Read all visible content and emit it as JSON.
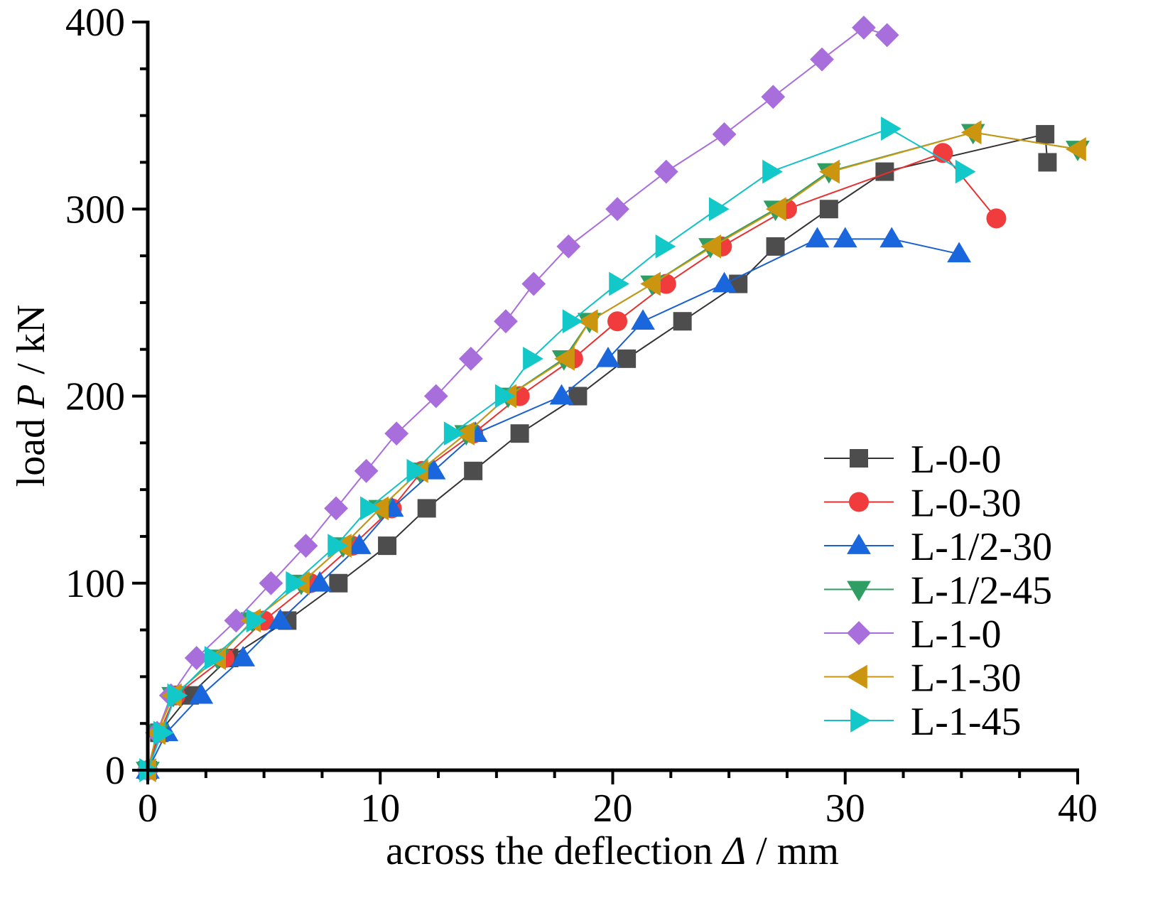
{
  "chart_data": {
    "type": "line",
    "title": "",
    "xlabel": "across the deflection Δ / mm",
    "xlabel_parts": [
      "across the deflection ",
      "Δ",
      " / mm"
    ],
    "ylabel": "load P / kN",
    "ylabel_parts": [
      "load ",
      "P",
      " / kN"
    ],
    "xlim": [
      0,
      40
    ],
    "ylim": [
      0,
      400
    ],
    "xticks": [
      0,
      10,
      20,
      30,
      40
    ],
    "xtick_labels": [
      "0",
      "10",
      "20",
      "30",
      "40"
    ],
    "xminor_step": 2.5,
    "yticks": [
      0,
      100,
      200,
      300,
      400
    ],
    "ytick_labels": [
      "0",
      "100",
      "200",
      "300",
      "400"
    ],
    "yminor_step": 25,
    "grid": false,
    "legend_position": "bottom-right",
    "series": [
      {
        "name": "L-0-0",
        "marker": "square",
        "color": "#4d4d4d",
        "line_color": "#333333",
        "x": [
          0,
          0.5,
          1.8,
          3.5,
          6.0,
          8.2,
          10.3,
          12.0,
          14.0,
          16.0,
          18.5,
          20.6,
          23.0,
          25.4,
          27.0,
          29.3,
          31.7,
          38.6,
          38.7
        ],
        "y": [
          0,
          20,
          40,
          60,
          80,
          100,
          120,
          140,
          160,
          180,
          200,
          220,
          240,
          260,
          280,
          300,
          320,
          340,
          325
        ]
      },
      {
        "name": "L-0-30",
        "marker": "circle",
        "color": "#f03c3c",
        "line_color": "#e83030",
        "x": [
          0,
          0.5,
          1.2,
          3.3,
          5.0,
          7.0,
          8.8,
          10.5,
          11.8,
          14.0,
          16.0,
          18.3,
          20.2,
          22.3,
          24.7,
          27.5,
          34.2,
          36.5
        ],
        "y": [
          0,
          20,
          40,
          60,
          80,
          100,
          120,
          140,
          160,
          180,
          200,
          220,
          240,
          260,
          280,
          300,
          330,
          295
        ]
      },
      {
        "name": "L-1/2-30",
        "marker": "triangle-up",
        "color": "#1a66dd",
        "line_color": "#1a5fd0",
        "x": [
          0,
          0.8,
          2.3,
          4.1,
          5.7,
          7.4,
          9.1,
          10.5,
          12.3,
          14.1,
          17.8,
          19.8,
          21.3,
          24.8,
          28.8,
          30.0,
          32.0,
          34.9
        ],
        "y": [
          0,
          20,
          40,
          60,
          80,
          100,
          120,
          140,
          160,
          180,
          200,
          220,
          240,
          260,
          284,
          284,
          284,
          276
        ]
      },
      {
        "name": "L-1/2-45",
        "marker": "triangle-down",
        "color": "#2e9e62",
        "line_color": "#2e9e62",
        "x": [
          0,
          0.4,
          1.1,
          3.0,
          4.5,
          6.6,
          8.4,
          10.0,
          11.7,
          13.7,
          15.5,
          17.9,
          19.0,
          21.7,
          24.2,
          27.0,
          29.3,
          35.5,
          40.0
        ],
        "y": [
          0,
          20,
          40,
          60,
          80,
          100,
          120,
          140,
          160,
          180,
          200,
          220,
          240,
          260,
          280,
          300,
          320,
          341,
          332
        ]
      },
      {
        "name": "L-1-0",
        "marker": "diamond",
        "color": "#a86edc",
        "line_color": "#a86edc",
        "x": [
          0,
          0.4,
          1.0,
          2.1,
          3.8,
          5.3,
          6.8,
          8.1,
          9.4,
          10.7,
          12.4,
          13.9,
          15.4,
          16.6,
          18.1,
          20.2,
          22.3,
          24.8,
          26.9,
          29.0,
          30.8,
          31.8
        ],
        "y": [
          0,
          20,
          40,
          60,
          80,
          100,
          120,
          140,
          160,
          180,
          200,
          220,
          240,
          260,
          280,
          300,
          320,
          340,
          360,
          380,
          397,
          393
        ]
      },
      {
        "name": "L-1-30",
        "marker": "triangle-left",
        "color": "#cc9510",
        "line_color": "#cc9510",
        "x": [
          0,
          0.4,
          1.1,
          3.0,
          4.5,
          6.6,
          8.4,
          10.0,
          11.7,
          13.7,
          15.5,
          18.0,
          19.0,
          21.7,
          24.3,
          27.1,
          29.4,
          35.5,
          40.0
        ],
        "y": [
          0,
          20,
          40,
          60,
          80,
          100,
          120,
          140,
          160,
          180,
          200,
          220,
          240,
          260,
          280,
          300,
          320,
          341,
          332
        ]
      },
      {
        "name": "L-1-45",
        "marker": "triangle-right",
        "color": "#12c8c8",
        "line_color": "#12c0c8",
        "x": [
          0,
          0.6,
          1.2,
          2.8,
          4.6,
          6.3,
          8.1,
          9.5,
          11.5,
          13.1,
          15.3,
          16.5,
          18.2,
          20.2,
          22.2,
          24.5,
          26.8,
          31.9,
          35.1
        ],
        "y": [
          0,
          20,
          40,
          60,
          80,
          100,
          120,
          140,
          160,
          180,
          200,
          220,
          240,
          260,
          280,
          300,
          320,
          343,
          320
        ]
      }
    ]
  }
}
